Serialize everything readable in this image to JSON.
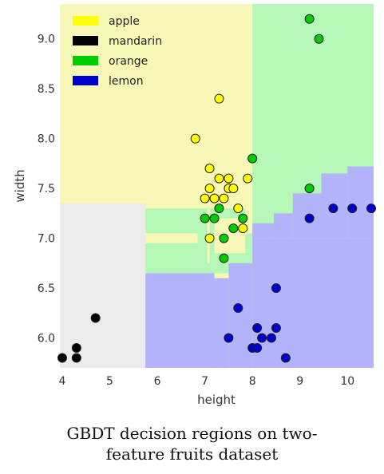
{
  "caption": {
    "line1": "GBDT decision regions on two-",
    "line2": "feature fruits dataset"
  },
  "colors": {
    "apple_region": "#f7f7b6",
    "mandarin_region": "#ebebeb",
    "orange_region": "#b5f7b7",
    "lemon_region": "#b3b3fb",
    "apple_point": "#ffff00",
    "mandarin_point": "#000000",
    "orange_point": "#00cc00",
    "lemon_point": "#0000cc"
  },
  "chart_data": {
    "type": "scatter",
    "title": "",
    "xlabel": "height",
    "ylabel": "width",
    "xlim": [
      3.95,
      10.55
    ],
    "ylim": [
      5.7,
      9.35
    ],
    "xticks": [
      4,
      5,
      6,
      7,
      8,
      9,
      10
    ],
    "yticks": [
      6.0,
      6.5,
      7.0,
      7.5,
      8.0,
      8.5,
      9.0
    ],
    "xtick_labels": [
      "4",
      "5",
      "6",
      "7",
      "8",
      "9",
      "10"
    ],
    "ytick_labels": [
      "6.0",
      "6.5",
      "7.0",
      "7.5",
      "8.0",
      "8.5",
      "9.0"
    ],
    "grid": false,
    "legend_position": "top-left",
    "series": [
      {
        "name": "apple",
        "color": "#ffff00",
        "points": [
          [
            6.8,
            8.0
          ],
          [
            7.3,
            8.4
          ],
          [
            7.1,
            7.7
          ],
          [
            7.3,
            7.6
          ],
          [
            7.5,
            7.6
          ],
          [
            7.9,
            7.6
          ],
          [
            7.1,
            7.5
          ],
          [
            7.5,
            7.5
          ],
          [
            7.6,
            7.5
          ],
          [
            7.0,
            7.4
          ],
          [
            7.2,
            7.4
          ],
          [
            7.4,
            7.4
          ],
          [
            7.7,
            7.3
          ],
          [
            7.1,
            7.0
          ],
          [
            7.8,
            7.1
          ]
        ]
      },
      {
        "name": "mandarin",
        "color": "#000000",
        "points": [
          [
            4.7,
            6.2
          ],
          [
            4.3,
            5.9
          ],
          [
            4.0,
            5.8
          ],
          [
            4.3,
            5.8
          ]
        ]
      },
      {
        "name": "orange",
        "color": "#00cc00",
        "points": [
          [
            9.2,
            9.2
          ],
          [
            9.4,
            9.0
          ],
          [
            8.0,
            7.8
          ],
          [
            9.2,
            7.5
          ],
          [
            7.0,
            7.2
          ],
          [
            7.2,
            7.2
          ],
          [
            7.8,
            7.2
          ],
          [
            7.3,
            7.3
          ],
          [
            7.6,
            7.1
          ],
          [
            7.4,
            7.0
          ],
          [
            7.4,
            6.8
          ]
        ]
      },
      {
        "name": "lemon",
        "color": "#0000cc",
        "points": [
          [
            9.7,
            7.3
          ],
          [
            10.1,
            7.3
          ],
          [
            10.5,
            7.3
          ],
          [
            9.2,
            7.2
          ],
          [
            8.5,
            6.5
          ],
          [
            7.7,
            6.3
          ],
          [
            8.1,
            6.1
          ],
          [
            8.5,
            6.1
          ],
          [
            7.5,
            6.0
          ],
          [
            8.2,
            6.0
          ],
          [
            8.4,
            6.0
          ],
          [
            8.0,
            5.9
          ],
          [
            8.1,
            5.9
          ],
          [
            8.7,
            5.8
          ]
        ]
      }
    ],
    "regions": [
      {
        "class": "apple",
        "x": [
          3.95,
          8.0
        ],
        "y": [
          7.35,
          9.35
        ]
      },
      {
        "class": "orange",
        "x": [
          8.0,
          10.55
        ],
        "y": [
          7.0,
          9.35
        ]
      },
      {
        "class": "mandarin",
        "x": [
          3.95,
          5.75
        ],
        "y": [
          5.7,
          7.35
        ]
      },
      {
        "class": "orange",
        "x": [
          5.75,
          8.0
        ],
        "y": [
          6.65,
          7.3
        ]
      },
      {
        "class": "apple",
        "x": [
          5.75,
          6.85
        ],
        "y": [
          6.95,
          7.05
        ]
      },
      {
        "class": "apple",
        "x": [
          7.05,
          7.1
        ],
        "y": [
          6.75,
          7.3
        ]
      },
      {
        "class": "apple",
        "x": [
          7.2,
          7.85
        ],
        "y": [
          6.85,
          7.2
        ]
      },
      {
        "class": "apple",
        "x": [
          7.85,
          8.0
        ],
        "y": [
          7.05,
          7.3
        ]
      },
      {
        "class": "lemon",
        "x": [
          5.75,
          7.2
        ],
        "y": [
          5.7,
          6.65
        ]
      },
      {
        "class": "lemon",
        "x": [
          7.2,
          7.5
        ],
        "y": [
          5.7,
          6.6
        ]
      },
      {
        "class": "lemon",
        "x": [
          7.5,
          8.0
        ],
        "y": [
          5.7,
          6.75
        ]
      },
      {
        "class": "lemon",
        "x": [
          8.0,
          10.55
        ],
        "y": [
          5.7,
          7.0
        ]
      },
      {
        "class": "lemon",
        "x": [
          8.0,
          8.45
        ],
        "y": [
          7.0,
          7.15
        ]
      },
      {
        "class": "lemon",
        "x": [
          8.45,
          8.85
        ],
        "y": [
          7.0,
          7.25
        ]
      },
      {
        "class": "lemon",
        "x": [
          8.85,
          9.45
        ],
        "y": [
          7.0,
          7.45
        ]
      },
      {
        "class": "lemon",
        "x": [
          9.45,
          10.0
        ],
        "y": [
          7.0,
          7.65
        ]
      },
      {
        "class": "lemon",
        "x": [
          10.0,
          10.55
        ],
        "y": [
          7.0,
          7.72
        ]
      }
    ]
  }
}
